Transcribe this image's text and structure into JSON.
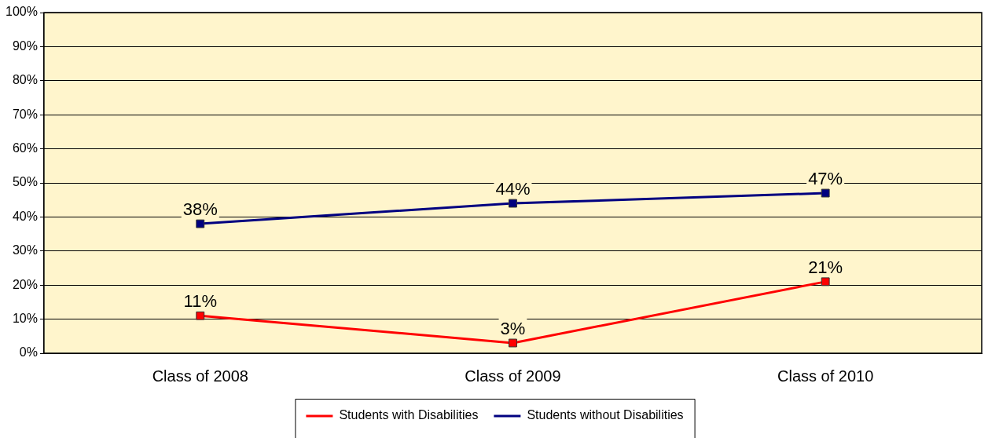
{
  "chart_data": {
    "type": "line",
    "categories": [
      "Class of 2008",
      "Class of 2009",
      "Class of 2010"
    ],
    "series": [
      {
        "name": "Students with Disabilities",
        "color": "#ff0000",
        "values": [
          11,
          3,
          21
        ],
        "value_labels": [
          "11%",
          "3%",
          "21%"
        ]
      },
      {
        "name": "Students without Disabilities",
        "color": "#000080",
        "values": [
          38,
          44,
          47
        ],
        "value_labels": [
          "38%",
          "44%",
          "47%"
        ]
      }
    ],
    "ylim": [
      0,
      100
    ],
    "yticks": [
      {
        "value": 0,
        "label": "0%"
      },
      {
        "value": 10,
        "label": "10%"
      },
      {
        "value": 20,
        "label": "20%"
      },
      {
        "value": 30,
        "label": "30%"
      },
      {
        "value": 40,
        "label": "40%"
      },
      {
        "value": 50,
        "label": "50%"
      },
      {
        "value": 60,
        "label": "60%"
      },
      {
        "value": 70,
        "label": "70%"
      },
      {
        "value": 80,
        "label": "80%"
      },
      {
        "value": 90,
        "label": "90%"
      },
      {
        "value": 100,
        "label": "100%"
      }
    ],
    "grid": "y",
    "legend": "bottom",
    "marker": "square",
    "line_style": "solid"
  }
}
